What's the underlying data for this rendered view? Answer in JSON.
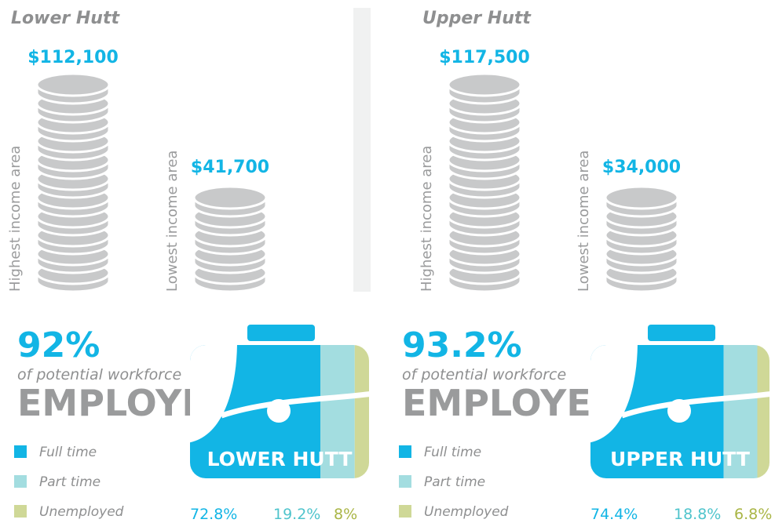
{
  "panels": [
    {
      "title": "Lower Hutt",
      "income": [
        {
          "label": "Highest income area",
          "value": "$112,100"
        },
        {
          "label": "Lowest income area",
          "value": "$41,700"
        }
      ],
      "employment": {
        "rate": "92%",
        "caption": "of potential workforce",
        "headline": "EMPLOYED",
        "briefcase_label": "LOWER HUTT",
        "categories": [
          "Full time",
          "Part time",
          "Unemployed"
        ],
        "values": [
          72.8,
          19.2,
          8
        ],
        "value_labels": [
          "72.8%",
          "19.2%",
          "8%"
        ],
        "colors": [
          "#12b5e5",
          "#a3dde0",
          "#cfd897"
        ]
      }
    },
    {
      "title": "Upper Hutt",
      "income": [
        {
          "label": "Highest income area",
          "value": "$117,500"
        },
        {
          "label": "Lowest income area",
          "value": "$34,000"
        }
      ],
      "employment": {
        "rate": "93.2%",
        "caption": "of potential workforce",
        "headline": "EMPLOYED",
        "briefcase_label": "UPPER HUTT",
        "categories": [
          "Full time",
          "Part time",
          "Unemployed"
        ],
        "values": [
          74.4,
          18.8,
          6.8
        ],
        "value_labels": [
          "74.4%",
          "18.8%",
          "6.8%"
        ],
        "colors": [
          "#12b5e5",
          "#a3dde0",
          "#cfd897"
        ]
      }
    }
  ]
}
